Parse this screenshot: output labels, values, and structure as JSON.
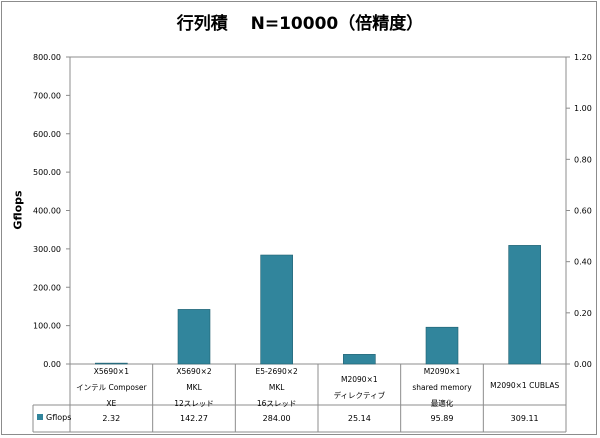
{
  "title": "行列積　 N=10000（倍精度）",
  "chart_data": {
    "type": "bar",
    "title": "行列積　 N=10000（倍精度）",
    "ylabel": "Gflops",
    "ylim": [
      0,
      800
    ],
    "y2lim": [
      0,
      1.2
    ],
    "yticks": [
      "0.00",
      "100.00",
      "200.00",
      "300.00",
      "400.00",
      "500.00",
      "600.00",
      "700.00",
      "800.00"
    ],
    "y2ticks": [
      "0.00",
      "0.20",
      "0.40",
      "0.60",
      "0.80",
      "1.00",
      "1.20"
    ],
    "categories": [
      [
        "X5690×1",
        "インテル Composer",
        "XE"
      ],
      [
        "X5690×2",
        "MKL",
        "12スレッド"
      ],
      [
        "E5-2690×2",
        "MKL",
        "16スレッド"
      ],
      [
        "M2090×1",
        "ディレクティブ"
      ],
      [
        "M2090×1",
        "shared memory",
        "最適化"
      ],
      [
        "M2090×1  CUBLAS"
      ]
    ],
    "series": [
      {
        "name": "Gflops",
        "values": [
          2.32,
          142.27,
          284.0,
          25.14,
          95.89,
          309.11
        ],
        "labels": [
          "2.32",
          "142.27",
          "284.00",
          "25.14",
          "95.89",
          "309.11"
        ],
        "color": "#31859c"
      }
    ],
    "grid": false,
    "legend": "data-table"
  }
}
